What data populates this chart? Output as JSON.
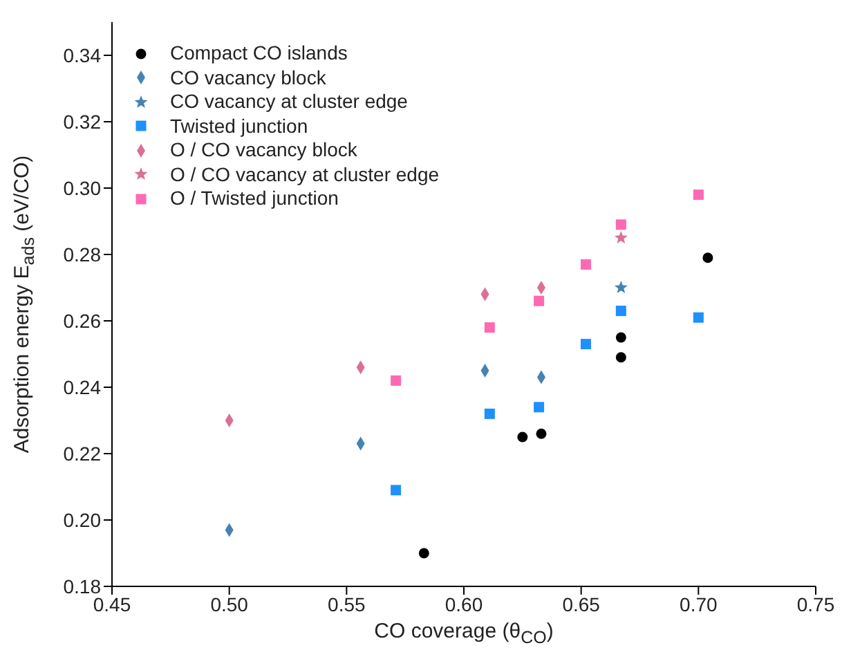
{
  "chart_data": {
    "type": "scatter",
    "xlabel": "CO coverage (θ$_{CO}$)",
    "ylabel": "Adsorption energy E$_{ads}$ (eV/CO)",
    "xlim": [
      0.45,
      0.75
    ],
    "xticks": [
      0.45,
      {
        "value": 0.5,
        "label": "0.50"
      },
      0.55,
      {
        "value": 0.6,
        "label": "0.60"
      },
      0.65,
      {
        "value": 0.7,
        "label": "0.70"
      },
      0.75
    ],
    "ylim": [
      0.18,
      0.35
    ],
    "yticks": [
      0.18,
      {
        "value": 0.2,
        "label": "0.20"
      },
      0.22,
      0.24,
      0.26,
      0.28,
      {
        "value": 0.3,
        "label": "0.30"
      },
      0.32,
      0.34
    ],
    "grid": false,
    "legend": "top left",
    "series": [
      {
        "name": "Compact CO islands",
        "color": "#000000",
        "marker": "circle",
        "x": [
          0.583,
          0.625,
          0.633,
          0.667,
          0.667,
          0.704
        ],
        "values": [
          0.19,
          0.225,
          0.226,
          0.255,
          0.249,
          0.279
        ]
      },
      {
        "name": "CO vacancy block",
        "color": "#4682b4",
        "marker": "diamond",
        "x": [
          0.5,
          0.556,
          0.609,
          0.633
        ],
        "values": [
          0.197,
          0.223,
          0.245,
          0.243
        ]
      },
      {
        "name": "CO vacancy at cluster edge",
        "color": "#4682b4",
        "marker": "star",
        "x": [
          0.667
        ],
        "values": [
          0.27
        ]
      },
      {
        "name": "Twisted junction",
        "color": "#1e90ff",
        "marker": "square",
        "x": [
          0.571,
          0.611,
          0.632,
          0.652,
          0.667,
          0.7
        ],
        "values": [
          0.209,
          0.232,
          0.234,
          0.253,
          0.263,
          0.261
        ]
      },
      {
        "name": "O / CO vacancy block",
        "color": "#db7093",
        "marker": "diamond",
        "x": [
          0.5,
          0.556,
          0.609,
          0.633
        ],
        "values": [
          0.23,
          0.246,
          0.268,
          0.27
        ]
      },
      {
        "name": "O / CO vacancy at cluster edge",
        "color": "#db7093",
        "marker": "star",
        "x": [
          0.667
        ],
        "values": [
          0.285
        ]
      },
      {
        "name": "O / Twisted junction",
        "color": "#ff69b4",
        "marker": "square",
        "x": [
          0.571,
          0.611,
          0.632,
          0.652,
          0.667,
          0.7
        ],
        "values": [
          0.242,
          0.258,
          0.266,
          0.277,
          0.289,
          0.298
        ]
      }
    ]
  }
}
